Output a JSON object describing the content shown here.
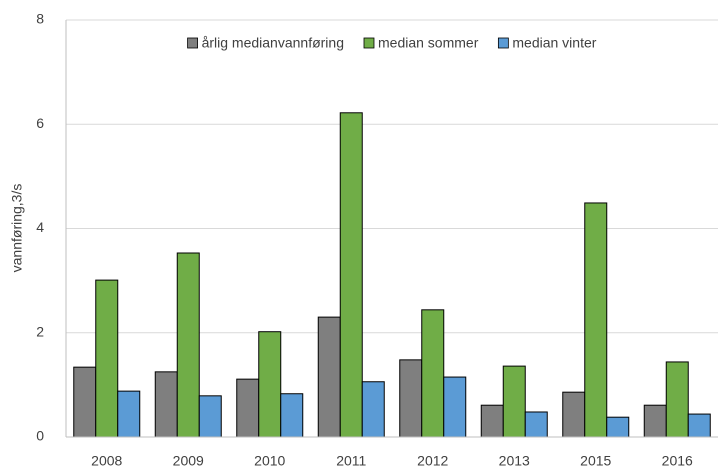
{
  "chart_data": {
    "type": "bar",
    "y_label": "vannføring,3/s",
    "categories": [
      "2008",
      "2009",
      "2010",
      "2011",
      "2012",
      "2013",
      "2015",
      "2016"
    ],
    "series": [
      {
        "name": "årlig medianvannføring",
        "color": "#7f7f7f",
        "values": [
          1.34,
          1.25,
          1.11,
          2.3,
          1.48,
          0.61,
          0.86,
          0.61
        ]
      },
      {
        "name": "median sommer",
        "color": "#70ad47",
        "values": [
          3.01,
          3.53,
          2.02,
          6.22,
          2.44,
          1.36,
          4.49,
          1.44
        ]
      },
      {
        "name": "median vinter",
        "color": "#5b9bd5",
        "values": [
          0.88,
          0.79,
          0.83,
          1.06,
          1.15,
          0.48,
          0.38,
          0.44
        ]
      }
    ],
    "ylim": [
      0,
      8
    ],
    "yticks": [
      0,
      2,
      4,
      6,
      8
    ],
    "grid": true,
    "legend": "top"
  }
}
